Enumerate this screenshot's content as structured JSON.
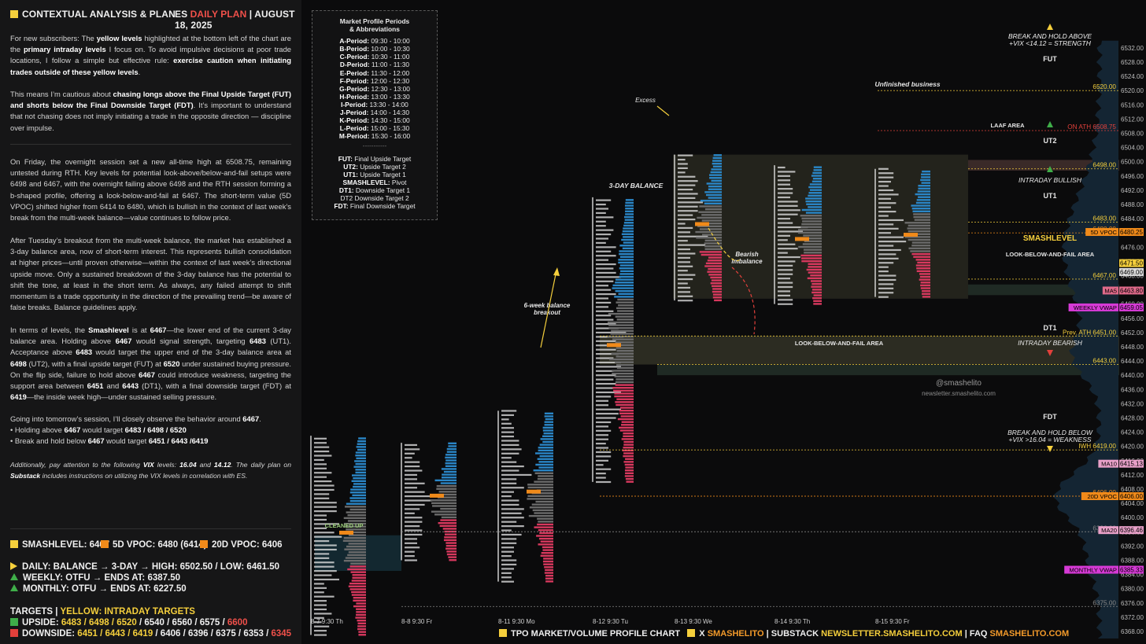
{
  "header": {
    "left_title": "CONTEXTUAL ANALYSIS & PLAN",
    "es": "ES",
    "daily_plan": "DAILY PLAN",
    "sep": "|",
    "date": "AUGUST 18, 2025"
  },
  "paragraphs": {
    "p1_html": "For new subscribers: The <b>yellow levels</b> highlighted at the bottom left of the chart are the <b>primary intraday levels</b> I focus on. To avoid impulsive decisions at poor trade locations, I follow a simple but effective rule: <b>exercise caution when initiating trades outside of these yellow levels</b>.",
    "p2_html": "This means I’m cautious about <b>chasing longs above the Final Upside Target (FUT) and shorts below the Final Downside Target (FDT)</b>. It’s important to understand that not chasing does not imply initiating a trade in the opposite direction — discipline over impulse.",
    "p3": "On Friday, the overnight session set a new all-time high at 6508.75, remaining untested during RTH. Key levels for potential look-above/below-and-fail setups were 6498 and 6467, with the overnight failing above 6498 and the RTH session forming a b-shaped profile, offering a look-below-and-fail at 6467. The short-term value (5D VPOC) shifted higher from 6414 to 6480, which is bullish in the context of last week’s break from the multi-week balance—value continues to follow price.",
    "p4": "After Tuesday’s breakout from the multi-week balance, the market has established a 3-day balance area, now of short-term interest. This represents bullish consolidation at higher prices—until proven otherwise—within the context of last week’s directional upside move. Only a sustained breakdown of the 3-day balance has the potential to shift the tone, at least in the short term. As always, any failed attempt to shift momentum is a trade opportunity in the direction of the prevailing trend—be aware of false breaks. Balance guidelines apply.",
    "p5_html": "In terms of levels, the <b>Smashlevel</b> is at <b>6467</b>—the lower end of the current 3-day balance area. Holding above <b>6467</b> would signal strength, targeting <b>6483</b> (UT1). Acceptance above <b>6483</b> would target the upper end of the 3-day balance area at <b>6498</b> (UT2), with a final upside target (FUT) at <b>6520</b> under sustained buying pressure. On the flip side, failure to hold above <b>6467</b> could introduce weakness, targeting the support area between <b>6451</b> and <b>6443</b> (DT1), with a final downside target (FDT) at <b>6419</b>—the inside week high—under sustained selling pressure.",
    "p6_html": "Going into tomorrow’s session, I’ll closely observe the behavior around <b>6467</b>.<br>• Holding above <b>6467</b> would target <b>6483 / 6498 / 6520</b><br>• Break and hold below <b>6467</b> would target <b>6451 / 6443 /6419</b>",
    "p7_html": "Additionally, pay attention to the following <b>VIX</b> levels: <b>16.04</b> and <b>14.12</b>. The daily plan on <b>Substack</b> includes instructions on utilizing the VIX levels in correlation with ES."
  },
  "levels": {
    "smashlevel": "SMASHLEVEL: 6467",
    "vpoc5": "5D VPOC: 6480 (6414)",
    "vpoc20": "20D VPOC: 6406",
    "daily": "DAILY: BALANCE → 3-DAY → HIGH: 6502.50 / LOW: 6461.50",
    "weekly": "WEEKLY: OTFU → ENDS AT: 6387.50",
    "monthly": "MONTHLY: OTFU → ENDS AT: 6227.50",
    "targets_label": "TARGETS",
    "targets_sep": "|",
    "targets_yellow": "YELLOW: INTRADAY TARGETS",
    "upside_label": "UPSIDE:",
    "upside_yellow": "6483 / 6498 / 6520",
    "upside_rest": "/ 6540 / 6560 / 6575 /",
    "upside_red": "6600",
    "downside_label": "DOWNSIDE:",
    "downside_yellow": "6451 / 6443 / 6419",
    "downside_rest": "/ 6406 / 6396 / 6375 / 6353 /",
    "downside_red": "6345"
  },
  "legend": {
    "title1": "Market Profile Periods",
    "title2": "& Abbreviations",
    "periods": [
      "A-Period: 09:30 - 10:00",
      "B-Period: 10:00 - 10:30",
      "C-Period: 10:30 - 11:00",
      "D-Period: 11:00 - 11:30",
      "E-Period: 11:30 - 12:00",
      "F-Period: 12:00 - 12:30",
      "G-Period: 12:30 - 13:00",
      "H-Period: 13:00 - 13:30",
      "I-Period: 13:30 - 14:00",
      "J-Period: 14:00 - 14:30",
      "K-Period: 14:30 - 15:00",
      "L-Period: 15:00 - 15:30",
      "M-Period: 15:30 - 16:00"
    ],
    "divider": "-----------",
    "abbr": [
      "FUT: Final Upside Target",
      "UT2: Upside Target 2",
      "UT1: Upside Target 1",
      "SMASHLEVEL: Pivot",
      "DT1: Downside Target 1",
      "DT2 Downside Target 2",
      "FDT: Final Downside Target"
    ]
  },
  "footer": {
    "tpo": "TPO MARKET/VOLUME PROFILE CHART",
    "x": "X",
    "x_handle": "SMASHELITO",
    "substack": "| SUBSTACK",
    "substack_url": "NEWSLETTER.SMASHELITO.COM",
    "faq": "| FAQ",
    "faq_url": "SMASHELITO.COM"
  },
  "chart_data": {
    "type": "tpo_profile",
    "title": "",
    "ylim": [
      6366,
      6534
    ],
    "yticks": [
      6368,
      6372,
      6376,
      6380,
      6384,
      6388,
      6392,
      6396,
      6400,
      6404,
      6408,
      6412,
      6416,
      6420,
      6424,
      6428,
      6432,
      6436,
      6440,
      6444,
      6448,
      6452,
      6456,
      6460,
      6464,
      6468,
      6472,
      6476,
      6480,
      6484,
      6488,
      6492,
      6496,
      6500,
      6504,
      6508,
      6512,
      6516,
      6520,
      6524,
      6528,
      6532
    ],
    "sessions": [
      {
        "label": "8-7  9:30 Th",
        "low": 6367,
        "high": 6423
      },
      {
        "label": "8-8  9:30 Fr",
        "low": 6388,
        "high": 6421
      },
      {
        "label": "8-11  9:30 Mo",
        "low": 6382,
        "high": 6430
      },
      {
        "label": "8-12  9:30 Tu",
        "low": 6410,
        "high": 6490
      },
      {
        "label": "8-13  9:30 We",
        "low": 6461,
        "high": 6502
      },
      {
        "label": "8-14  9:30 Th",
        "low": 6460,
        "high": 6499
      },
      {
        "label": "8-15  9:30 Fr",
        "low": 6462,
        "high": 6498
      }
    ],
    "levels": [
      {
        "name": "FUT",
        "value": 6520.0,
        "label": "6520.00"
      },
      {
        "name": "ON ATH",
        "value": 6508.75,
        "label": "ON ATH  6508.75"
      },
      {
        "name": "UT2",
        "value": 6498.0,
        "label": "6498.00"
      },
      {
        "name": "UT1",
        "value": 6483.0,
        "label": "6483.00"
      },
      {
        "name": "5D VPOC",
        "value": 6480.0,
        "label": "6480.00"
      },
      {
        "name": "SMASHLEVEL",
        "value": 6467.0,
        "label": "6467.00"
      },
      {
        "name": "Prev. ATH",
        "value": 6451.0,
        "label": "Prev. ATH  6451.00"
      },
      {
        "name": "DT1",
        "value": 6443.0,
        "label": "6443.00"
      },
      {
        "name": "IWH",
        "value": 6419.0,
        "label": "IWH  6419.00"
      },
      {
        "name": "20D VPOC",
        "value": 6406.0,
        "label": "6406.00"
      },
      {
        "name": "",
        "value": 6396.0,
        "label": "6396.00"
      },
      {
        "name": "",
        "value": 6375.0,
        "label": "6375.00"
      }
    ],
    "price_tags": [
      {
        "name": "5D VPOC",
        "value": 6480.25,
        "label": "6480.25",
        "color": "#f08a1a"
      },
      {
        "name": "",
        "value": 6471.5,
        "label": "6471.50",
        "color": "#f5cf3c"
      },
      {
        "name": "",
        "value": 6469.0,
        "label": "6469.00",
        "color": "#dcdcdc"
      },
      {
        "name": "MA5",
        "value": 6463.8,
        "label": "6463.80",
        "color": "#e06a8a"
      },
      {
        "name": "WEEKLY VWAP",
        "value": 6459.05,
        "label": "6459.05",
        "color": "#d63ad6"
      },
      {
        "name": "MA10",
        "value": 6415.13,
        "label": "6415.13",
        "color": "#e8a0c8"
      },
      {
        "name": "20D VPOC",
        "value": 6406.0,
        "label": "6406.00",
        "color": "#f08a1a"
      },
      {
        "name": "MA20",
        "value": 6396.46,
        "label": "6396.46",
        "color": "#e8a0c8"
      },
      {
        "name": "MONTHLY VWAP",
        "value": 6385.33,
        "label": "6385.33",
        "color": "#d63ad6"
      }
    ],
    "annotations": {
      "break_up_1": "BREAK AND HOLD ABOVE",
      "break_up_2": "+VIX <14.12 = STRENGTH",
      "fut": "FUT",
      "unfinished": "Unfinished business",
      "laaf": "LAAF AREA",
      "ut2": "UT2",
      "intraday_bullish": "INTRADAY BULLISH",
      "ut1": "UT1",
      "smashlevel": "SMASHLEVEL",
      "lbaf1": "LOOK-BELOW-AND-FAIL AREA",
      "dt1": "DT1",
      "lbaf2": "LOOK-BELOW-AND-FAIL AREA",
      "intraday_bearish": "INTRADAY BEARISH",
      "fdt": "FDT",
      "break_dn_1": "BREAK AND HOLD BELOW",
      "break_dn_2": "+VIX >16.04 = WEAKNESS",
      "excess": "Excess",
      "three_day": "3-DAY BALANCE",
      "bearish_1": "Bearish",
      "bearish_2": "imbalance",
      "six_week_1": "6-week balance",
      "six_week_2": "breakout",
      "cleaned": "CLEANED UP",
      "handle": "@smashelito",
      "site": "newsletter.smashelito.com",
      "ma5": "MA5",
      "weekly_vwap": "WEEKLY VWAP",
      "vpoc5": "5D VPOC",
      "vpoc20": "20D VPOC",
      "ma10": "MA10",
      "ma20": "MA20",
      "monthly_vwap": "MONTHLY VWAP"
    }
  },
  "colors": {
    "yellow": "#f5cf3c",
    "orange": "#f08a1a",
    "green": "#3fae49",
    "red": "#e2403b",
    "blue_bar": "#2a86c7",
    "pink_bar": "#d8385e",
    "gray_bar": "#6b6b6b"
  }
}
